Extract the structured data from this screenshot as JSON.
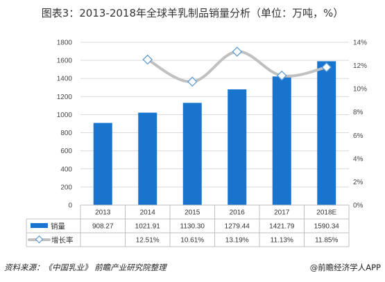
{
  "title": "图表3：2013-2018年全球羊乳制品销量分析（单位：万吨，%）",
  "source": "资料来源：《中国乳业》 前瞻产业研究院整理",
  "brand": "@前瞻经济学人APP",
  "colors": {
    "bar": "#1874CD",
    "line": "#C0C0C0",
    "marker": "#ffffff",
    "marker_stroke": "#5B9BD5",
    "grid": "#DADADA"
  },
  "chart_data": {
    "type": "bar",
    "categories": [
      "2013",
      "2014",
      "2015",
      "2016",
      "2017",
      "2018E"
    ],
    "series": [
      {
        "name": "销量",
        "type": "bar",
        "axis": "left",
        "values": [
          908.27,
          1021.91,
          1130.3,
          1279.44,
          1421.79,
          1590.34
        ],
        "labels": [
          "908.27",
          "1021.91",
          "1130.30",
          "1279.44",
          "1421.79",
          "1590.34"
        ]
      },
      {
        "name": "增长率",
        "type": "line",
        "axis": "right",
        "values": [
          null,
          12.51,
          10.61,
          13.19,
          11.13,
          11.85
        ],
        "labels": [
          "",
          "12.51%",
          "10.61%",
          "13.19%",
          "11.13%",
          "11.85%"
        ]
      }
    ],
    "y_left": {
      "range": [
        0,
        1800
      ],
      "ticks": [
        "0",
        "200",
        "400",
        "600",
        "800",
        "1000",
        "1200",
        "1400",
        "1600",
        "1800"
      ]
    },
    "y_right": {
      "range": [
        0,
        14
      ],
      "ticks": [
        "0%",
        "2%",
        "4%",
        "6%",
        "8%",
        "10%",
        "12%",
        "14%"
      ]
    },
    "grid": true,
    "legend": "data-table"
  }
}
